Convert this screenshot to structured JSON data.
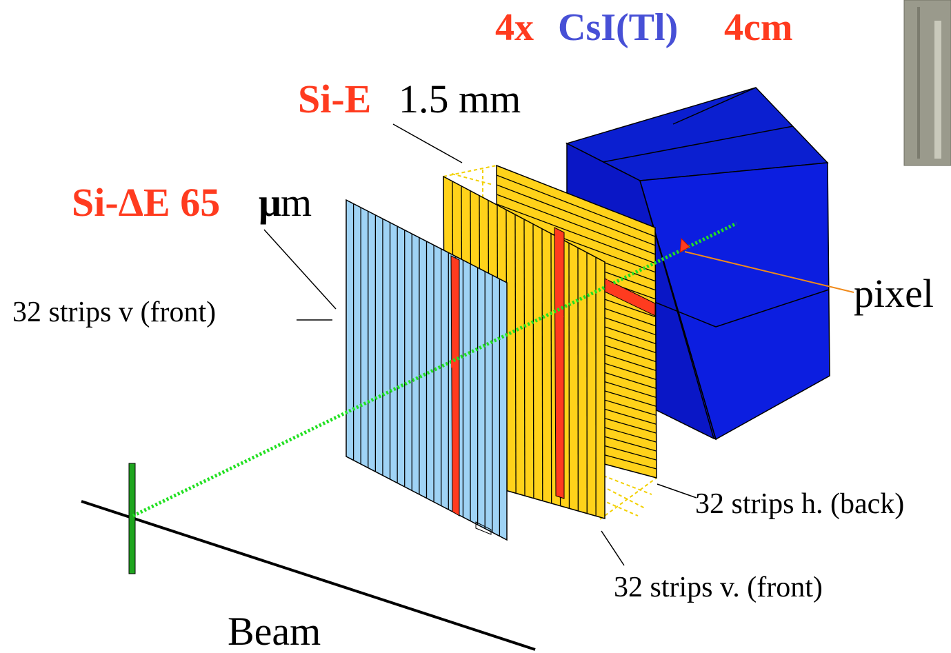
{
  "title": {
    "count": "4x",
    "crystal": "CsI(Tl)",
    "thickness": "4cm"
  },
  "labels": {
    "si_e_name": "Si-E",
    "si_e_thickness": "1.5 mm",
    "si_de_name": "Si-ΔE 65",
    "si_de_unit_mu": "μ",
    "si_de_unit_m": "m",
    "de_strips_front": "32 strips v (front)",
    "pixel": "pixel",
    "e_strips_back": "32 strips h. (back)",
    "e_strips_front": "32 strips v. (front)",
    "beam": "Beam"
  },
  "colors": {
    "highlight_red": "#ff3b1f",
    "crystal_blue": "#4750d6",
    "detector_blue": "#0a17e0",
    "de_strip_fill": "#9fd3f5",
    "e_strip_fill": "#ffd21a",
    "beam_green": "#22e022",
    "target_green": "#1fa51f"
  },
  "strip_counts": {
    "de_front_drawn": 22,
    "e_front_drawn": 18,
    "e_back_drawn": 28
  }
}
